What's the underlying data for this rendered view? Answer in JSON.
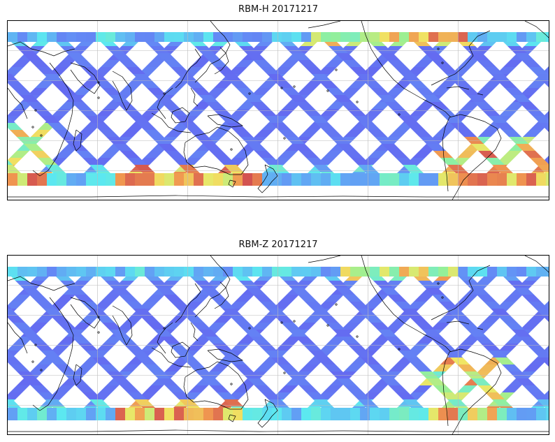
{
  "panels": [
    {
      "title": "RBM-H 20171217"
    },
    {
      "title": "RBM-Z 20171217"
    }
  ],
  "colormap": "jet",
  "swath_color_low": "#6464f0",
  "swath_color_mid": "#5ce8f0",
  "swath_color_high": "#d85050",
  "coastline_color": "#000000",
  "gridline_color": "#bbbbbb"
}
